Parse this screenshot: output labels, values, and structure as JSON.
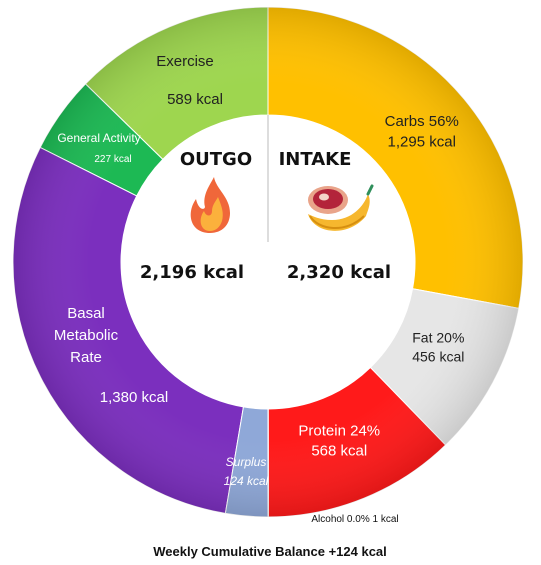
{
  "chart_data": {
    "type": "pie",
    "variant": "donut",
    "footer": "Weekly Cumulative Balance +124 kcal",
    "outgo": {
      "heading": "OUTGO",
      "total_label": "2,196 kcal",
      "icon": "fire-icon",
      "segments": [
        {
          "name": "Basal Metabolic Rate",
          "name_lines": [
            "Basal",
            "Metabolic",
            "Rate"
          ],
          "value_label": "1,380 kcal",
          "value": 1380,
          "color": "#7B2FBE"
        },
        {
          "name": "General Activity",
          "name_lines": [
            "General Activity"
          ],
          "value_label": "227 kcal",
          "value": 227,
          "color": "#1DB954"
        },
        {
          "name": "Exercise",
          "name_lines": [
            "Exercise"
          ],
          "value_label": "589 kcal",
          "value": 589,
          "color": "#9ED64F"
        }
      ]
    },
    "intake": {
      "heading": "INTAKE",
      "total_label": "2,320 kcal",
      "icon": "food-icon",
      "segments": [
        {
          "name": "Carbs",
          "name_lines": [
            "Carbs 56%"
          ],
          "percent": 56,
          "value_label": "1,295 kcal",
          "value": 1295,
          "color": "#FFC000"
        },
        {
          "name": "Fat",
          "name_lines": [
            "Fat 20%"
          ],
          "percent": 20,
          "value_label": "456 kcal",
          "value": 456,
          "color": "#E6E6E6"
        },
        {
          "name": "Protein",
          "name_lines": [
            "Protein 24%"
          ],
          "percent": 24,
          "value_label": "568 kcal",
          "value": 568,
          "color": "#FF1A1A"
        },
        {
          "name": "Alcohol",
          "name_lines": [],
          "percent": 0.0,
          "value_label": "1 kcal",
          "value": 1,
          "color": "#FFFFFF",
          "external_label": "Alcohol 0.0% 1 kcal"
        }
      ]
    },
    "surplus": {
      "name": "Surplus",
      "value_label": "124 kcal",
      "value": 124,
      "color": "#8FA8D8"
    }
  }
}
